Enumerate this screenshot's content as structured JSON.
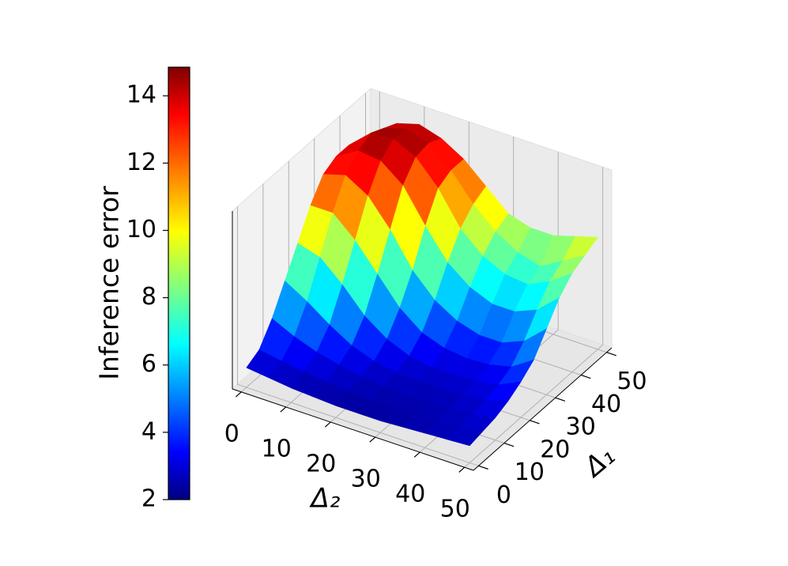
{
  "chart_data": {
    "type": "surface3d",
    "xlabel": "Δ₂",
    "ylabel": "Δ₁",
    "colorbar_label": "Inference error",
    "colormap": "jet",
    "x": [
      0,
      5,
      10,
      15,
      20,
      25,
      30,
      35,
      40,
      45,
      50
    ],
    "y": [
      0,
      5,
      10,
      15,
      20,
      25,
      30,
      35,
      40,
      45,
      50
    ],
    "z": [
      [
        3,
        2.8,
        2.6,
        2.5,
        2.4,
        2.4,
        2.4,
        2.5,
        2.6,
        2.7,
        2.8
      ],
      [
        3.5,
        3.2,
        3.0,
        2.8,
        2.6,
        2.5,
        2.5,
        2.6,
        2.7,
        2.8,
        3.0
      ],
      [
        5,
        4.2,
        3.6,
        3.2,
        2.9,
        2.7,
        2.6,
        2.6,
        2.7,
        2.9,
        3.2
      ],
      [
        7,
        6,
        4.8,
        3.8,
        3.2,
        2.9,
        2.8,
        2.8,
        2.9,
        3.1,
        3.6
      ],
      [
        9,
        8.5,
        7,
        5.2,
        4,
        3.3,
        3,
        3,
        3.1,
        3.4,
        4.2
      ],
      [
        11,
        11,
        9.5,
        7.5,
        5.5,
        4.2,
        3.6,
        3.4,
        3.5,
        3.9,
        5
      ],
      [
        12.5,
        13,
        12,
        10,
        7.5,
        5.8,
        4.8,
        4.3,
        4.3,
        5,
        6.5
      ],
      [
        13,
        14,
        13.8,
        12.5,
        10,
        7.8,
        6.5,
        5.8,
        5.8,
        6.5,
        8
      ],
      [
        13,
        14.5,
        14.6,
        13.8,
        12,
        9.5,
        8,
        7.2,
        7,
        7.8,
        9
      ],
      [
        12.5,
        14,
        14.5,
        14,
        12.5,
        10.5,
        9,
        8,
        7.5,
        8.5,
        9.5
      ],
      [
        12,
        13.5,
        14,
        13.5,
        12.5,
        11,
        9.5,
        9,
        9,
        9.5,
        10
      ]
    ],
    "xlim": [
      -2,
      52
    ],
    "ylim": [
      -2,
      52
    ],
    "zlim": [
      1.5,
      15
    ],
    "xticks": [
      0,
      10,
      20,
      30,
      40,
      50
    ],
    "yticks": [
      0,
      10,
      20,
      30,
      40,
      50
    ],
    "clim": [
      2,
      14.85
    ],
    "cticks": [
      2,
      4,
      6,
      8,
      10,
      12,
      14
    ],
    "grid": true
  }
}
